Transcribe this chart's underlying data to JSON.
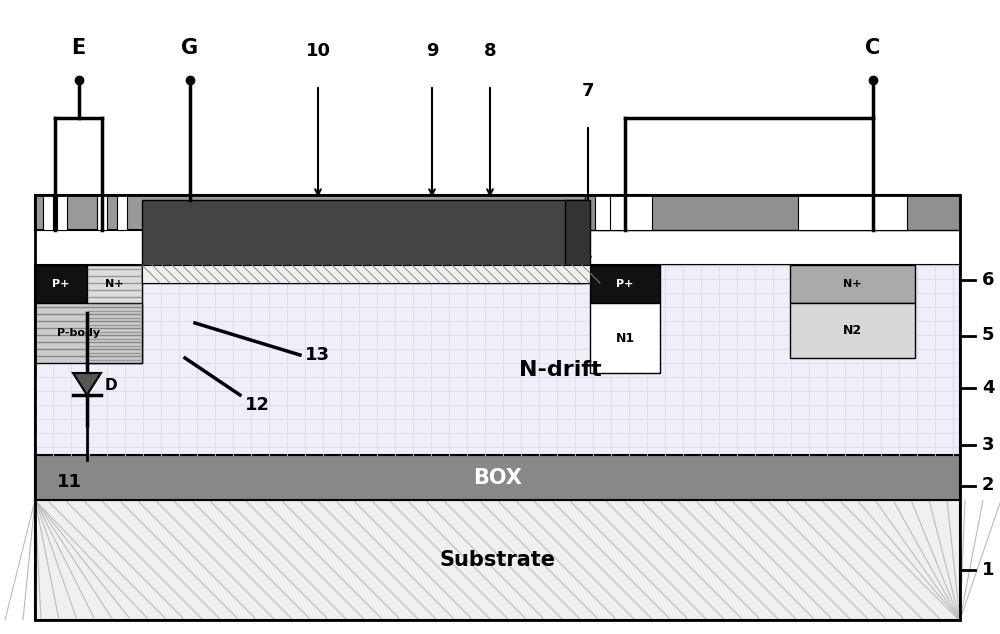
{
  "fig_width": 10.0,
  "fig_height": 6.34,
  "dpi": 100,
  "bg_color": "#ffffff",
  "colors": {
    "substrate_bg": "#eeeeee",
    "box_color": "#888888",
    "ndrift_bg": "#f0eef8",
    "ndrift_grid_h": "#ddd8e8",
    "ndrift_grid_v": "#ddd8e8",
    "metal_gray": "#909090",
    "metal_dark": "#666666",
    "p_region": "#111111",
    "n_region": "#aaaaaa",
    "pbody_bg": "#cccccc",
    "gate_poly": "#555555",
    "gate_oxide": "#ffffff",
    "white": "#ffffff",
    "black": "#000000",
    "light_n": "#c8c8c8"
  },
  "labels": {
    "E": "E",
    "G": "G",
    "C": "C",
    "substrate": "Substrate",
    "BOX": "BOX",
    "ndrift": "N-drift",
    "pbody": "P-body",
    "P_left": "P+",
    "N_left": "N+",
    "P_mid": "P+",
    "N_right": "N+",
    "N1": "N1",
    "N2": "N2",
    "D": "D"
  }
}
